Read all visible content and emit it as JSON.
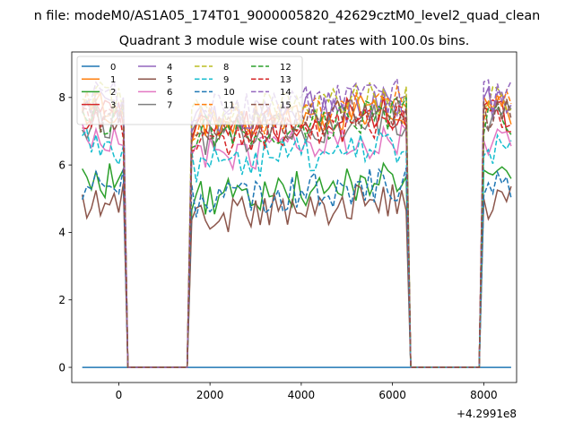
{
  "suptitle": "n file: modeM0/AS1A05_174T01_9000005820_42629cztM0_level2_quad_clean",
  "chart_data": {
    "type": "line",
    "title": "Quadrant 3 module wise count rates with 100.0s bins.",
    "xlabel": "",
    "ylabel": "",
    "x_offset_label": "+4.2991e8",
    "xlim": [
      -1030,
      8720
    ],
    "ylim": [
      -0.45,
      9.35
    ],
    "xticks": [
      0,
      2000,
      4000,
      6000,
      8000
    ],
    "xtick_labels": [
      "0",
      "2000",
      "4000",
      "6000",
      "8000"
    ],
    "yticks": [
      0,
      2,
      4,
      6,
      8
    ],
    "ytick_labels": [
      "0",
      "2",
      "4",
      "6",
      "8"
    ],
    "grid": false,
    "legend": {
      "location": "top-left",
      "columns": 4
    },
    "segments": [
      {
        "start": -800,
        "end": 100,
        "active": true
      },
      {
        "start": 200,
        "end": 1500,
        "active": false
      },
      {
        "start": 1600,
        "end": 6300,
        "active": true
      },
      {
        "start": 6400,
        "end": 7900,
        "active": false
      },
      {
        "start": 8000,
        "end": 8650,
        "active": true
      }
    ],
    "series": [
      {
        "name": "0",
        "color": "#1f77b4",
        "dash": "solid",
        "level": 0.0
      },
      {
        "name": "1",
        "color": "#ff7f0e",
        "dash": "solid",
        "level": 7.1
      },
      {
        "name": "2",
        "color": "#2ca02c",
        "dash": "solid",
        "level": 5.0
      },
      {
        "name": "3",
        "color": "#d62728",
        "dash": "solid",
        "level": 7.0
      },
      {
        "name": "4",
        "color": "#9467bd",
        "dash": "solid",
        "level": 7.3
      },
      {
        "name": "5",
        "color": "#8c564b",
        "dash": "solid",
        "level": 4.4
      },
      {
        "name": "6",
        "color": "#e377c2",
        "dash": "solid",
        "level": 6.2
      },
      {
        "name": "7",
        "color": "#7f7f7f",
        "dash": "solid",
        "level": 6.8
      },
      {
        "name": "8",
        "color": "#bcbd22",
        "dash": "dashed",
        "level": 7.4
      },
      {
        "name": "9",
        "color": "#17becf",
        "dash": "dashed",
        "level": 6.0
      },
      {
        "name": "10",
        "color": "#1f77b4",
        "dash": "dashed",
        "level": 4.9
      },
      {
        "name": "11",
        "color": "#ff7f0e",
        "dash": "dashed",
        "level": 7.2
      },
      {
        "name": "12",
        "color": "#2ca02c",
        "dash": "dashed",
        "level": 6.9
      },
      {
        "name": "13",
        "color": "#d62728",
        "dash": "dashed",
        "level": 6.7
      },
      {
        "name": "14",
        "color": "#9467bd",
        "dash": "dashed",
        "level": 7.5
      },
      {
        "name": "15",
        "color": "#8c564b",
        "dash": "dashed",
        "level": 7.0
      }
    ]
  }
}
